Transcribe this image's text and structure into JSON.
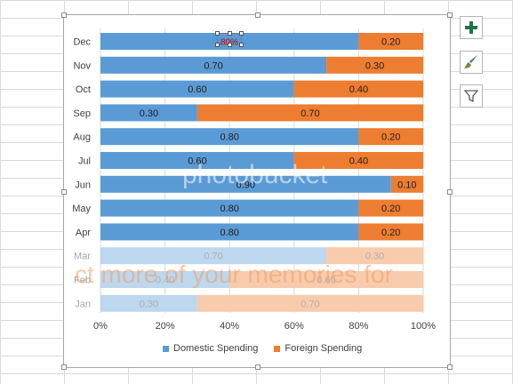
{
  "colors": {
    "domestic": "#5b9bd5",
    "foreign": "#ed7d31",
    "domestic_faded": "#bdd7ee",
    "foreign_faded": "#f8cbad",
    "selection_label": "#c00000"
  },
  "chart_data": {
    "type": "bar",
    "orientation": "horizontal",
    "stacked": "percent",
    "categories": [
      "Dec",
      "Nov",
      "Oct",
      "Sep",
      "Aug",
      "Jul",
      "Jun",
      "May",
      "Apr",
      "Mar",
      "Feb",
      "Jan"
    ],
    "faded_categories": [
      "Mar",
      "Feb",
      "Jan"
    ],
    "series": [
      {
        "name": "Domestic Spending",
        "values": [
          0.8,
          0.7,
          0.6,
          0.3,
          0.8,
          0.6,
          0.9,
          0.8,
          0.8,
          0.7,
          0.4,
          0.3
        ]
      },
      {
        "name": "Foreign Spending",
        "values": [
          0.2,
          0.3,
          0.4,
          0.7,
          0.2,
          0.4,
          0.1,
          0.2,
          0.2,
          0.3,
          0.6,
          0.7
        ]
      }
    ],
    "data_labels": [
      [
        "",
        "0.70",
        "0.60",
        "0.30",
        "0.80",
        "0.60",
        "0.90",
        "0.80",
        "0.80",
        "0.70",
        "0.40",
        "0.30"
      ],
      [
        "0.20",
        "0.30",
        "0.40",
        "0.70",
        "0.20",
        "0.40",
        "0.10",
        "0.20",
        "0.20",
        "0.30",
        "0.60",
        "0.70"
      ]
    ],
    "selected_label": "80%",
    "x_ticks": [
      "0%",
      "20%",
      "40%",
      "60%",
      "80%",
      "100%"
    ],
    "xlim": [
      0,
      1
    ],
    "grid": true,
    "legend": "bottom"
  },
  "side_buttons": {
    "elements_icon": "plus-icon",
    "styles_icon": "brush-icon",
    "filter_icon": "funnel-icon"
  },
  "watermark": {
    "text": "ct more of your memories for",
    "brand": "photobucket"
  }
}
